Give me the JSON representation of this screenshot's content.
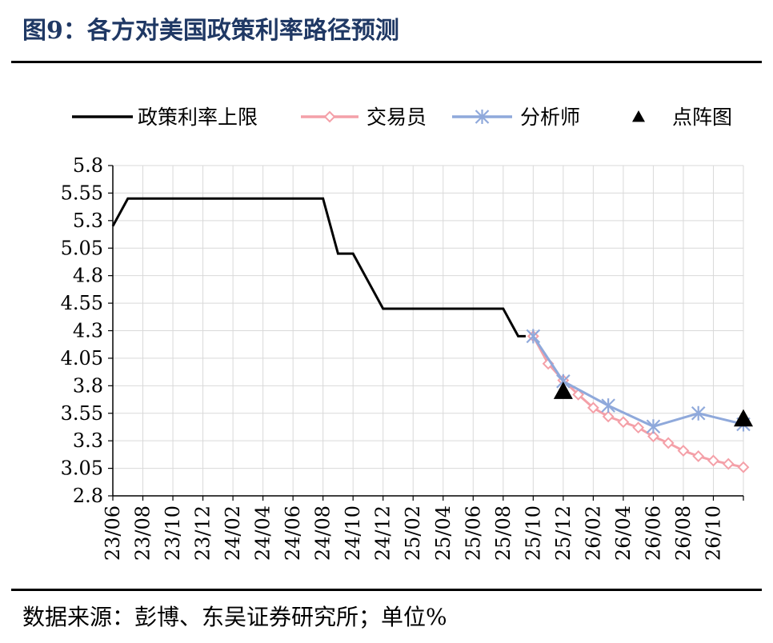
{
  "title": "图9：各方对美国政策利率路径预测",
  "source": "数据来源：彭博、东吴证券研究所；单位%",
  "chart_data": {
    "type": "line",
    "yticks": [
      "5.8",
      "5.55",
      "5.3",
      "5.05",
      "4.8",
      "4.55",
      "4.3",
      "4.05",
      "3.8",
      "3.55",
      "3.3",
      "3.05",
      "2.8"
    ],
    "ylim": [
      2.8,
      5.8
    ],
    "xlabels": [
      "23/06",
      "23/08",
      "23/10",
      "23/12",
      "24/02",
      "24/04",
      "24/06",
      "24/08",
      "24/10",
      "24/12",
      "25/02",
      "25/04",
      "25/06",
      "25/08",
      "25/10",
      "25/12",
      "26/02",
      "26/04",
      "26/06",
      "26/08",
      "26/10"
    ],
    "xlim": [
      "23/06",
      "26/12"
    ],
    "grid": true,
    "legend": "top",
    "series": [
      {
        "name": "政策利率上限",
        "color": "#000000",
        "marker": "none",
        "points": [
          [
            "23/06",
            5.25
          ],
          [
            "23/07",
            5.5
          ],
          [
            "23/08",
            5.5
          ],
          [
            "23/09",
            5.5
          ],
          [
            "23/10",
            5.5
          ],
          [
            "23/11",
            5.5
          ],
          [
            "23/12",
            5.5
          ],
          [
            "24/01",
            5.5
          ],
          [
            "24/02",
            5.5
          ],
          [
            "24/03",
            5.5
          ],
          [
            "24/04",
            5.5
          ],
          [
            "24/05",
            5.5
          ],
          [
            "24/06",
            5.5
          ],
          [
            "24/07",
            5.5
          ],
          [
            "24/08",
            5.5
          ],
          [
            "24/09",
            5.0
          ],
          [
            "24/10",
            5.0
          ],
          [
            "24/11",
            4.75
          ],
          [
            "24/12",
            4.5
          ],
          [
            "25/01",
            4.5
          ],
          [
            "25/02",
            4.5
          ],
          [
            "25/03",
            4.5
          ],
          [
            "25/04",
            4.5
          ],
          [
            "25/05",
            4.5
          ],
          [
            "25/06",
            4.5
          ],
          [
            "25/07",
            4.5
          ],
          [
            "25/08",
            4.5
          ],
          [
            "25/09",
            4.25
          ],
          [
            "25/09.5",
            4.25
          ]
        ]
      },
      {
        "name": "交易员",
        "color": "#f4a0a8",
        "marker": "diamond",
        "points": [
          [
            "25/10",
            4.25
          ],
          [
            "25/11",
            4.0
          ],
          [
            "25/12",
            3.85
          ],
          [
            "26/01",
            3.72
          ],
          [
            "26/02",
            3.6
          ],
          [
            "26/03",
            3.52
          ],
          [
            "26/04",
            3.47
          ],
          [
            "26/05",
            3.42
          ],
          [
            "26/06",
            3.34
          ],
          [
            "26/07",
            3.28
          ],
          [
            "26/08",
            3.21
          ],
          [
            "26/09",
            3.16
          ],
          [
            "26/10",
            3.12
          ],
          [
            "26/11",
            3.09
          ],
          [
            "26/12",
            3.06
          ]
        ]
      },
      {
        "name": "分析师",
        "color": "#8fa9db",
        "marker": "star",
        "points": [
          [
            "25/10",
            4.25
          ],
          [
            "25/12",
            3.84
          ],
          [
            "26/03",
            3.62
          ],
          [
            "26/06",
            3.43
          ],
          [
            "26/09",
            3.55
          ],
          [
            "26/12",
            3.45
          ]
        ]
      },
      {
        "name": "点阵图",
        "color": "#000000",
        "marker": "triangle",
        "points": [
          [
            "25/12",
            3.75
          ],
          [
            "26/12",
            3.5
          ]
        ]
      }
    ]
  }
}
